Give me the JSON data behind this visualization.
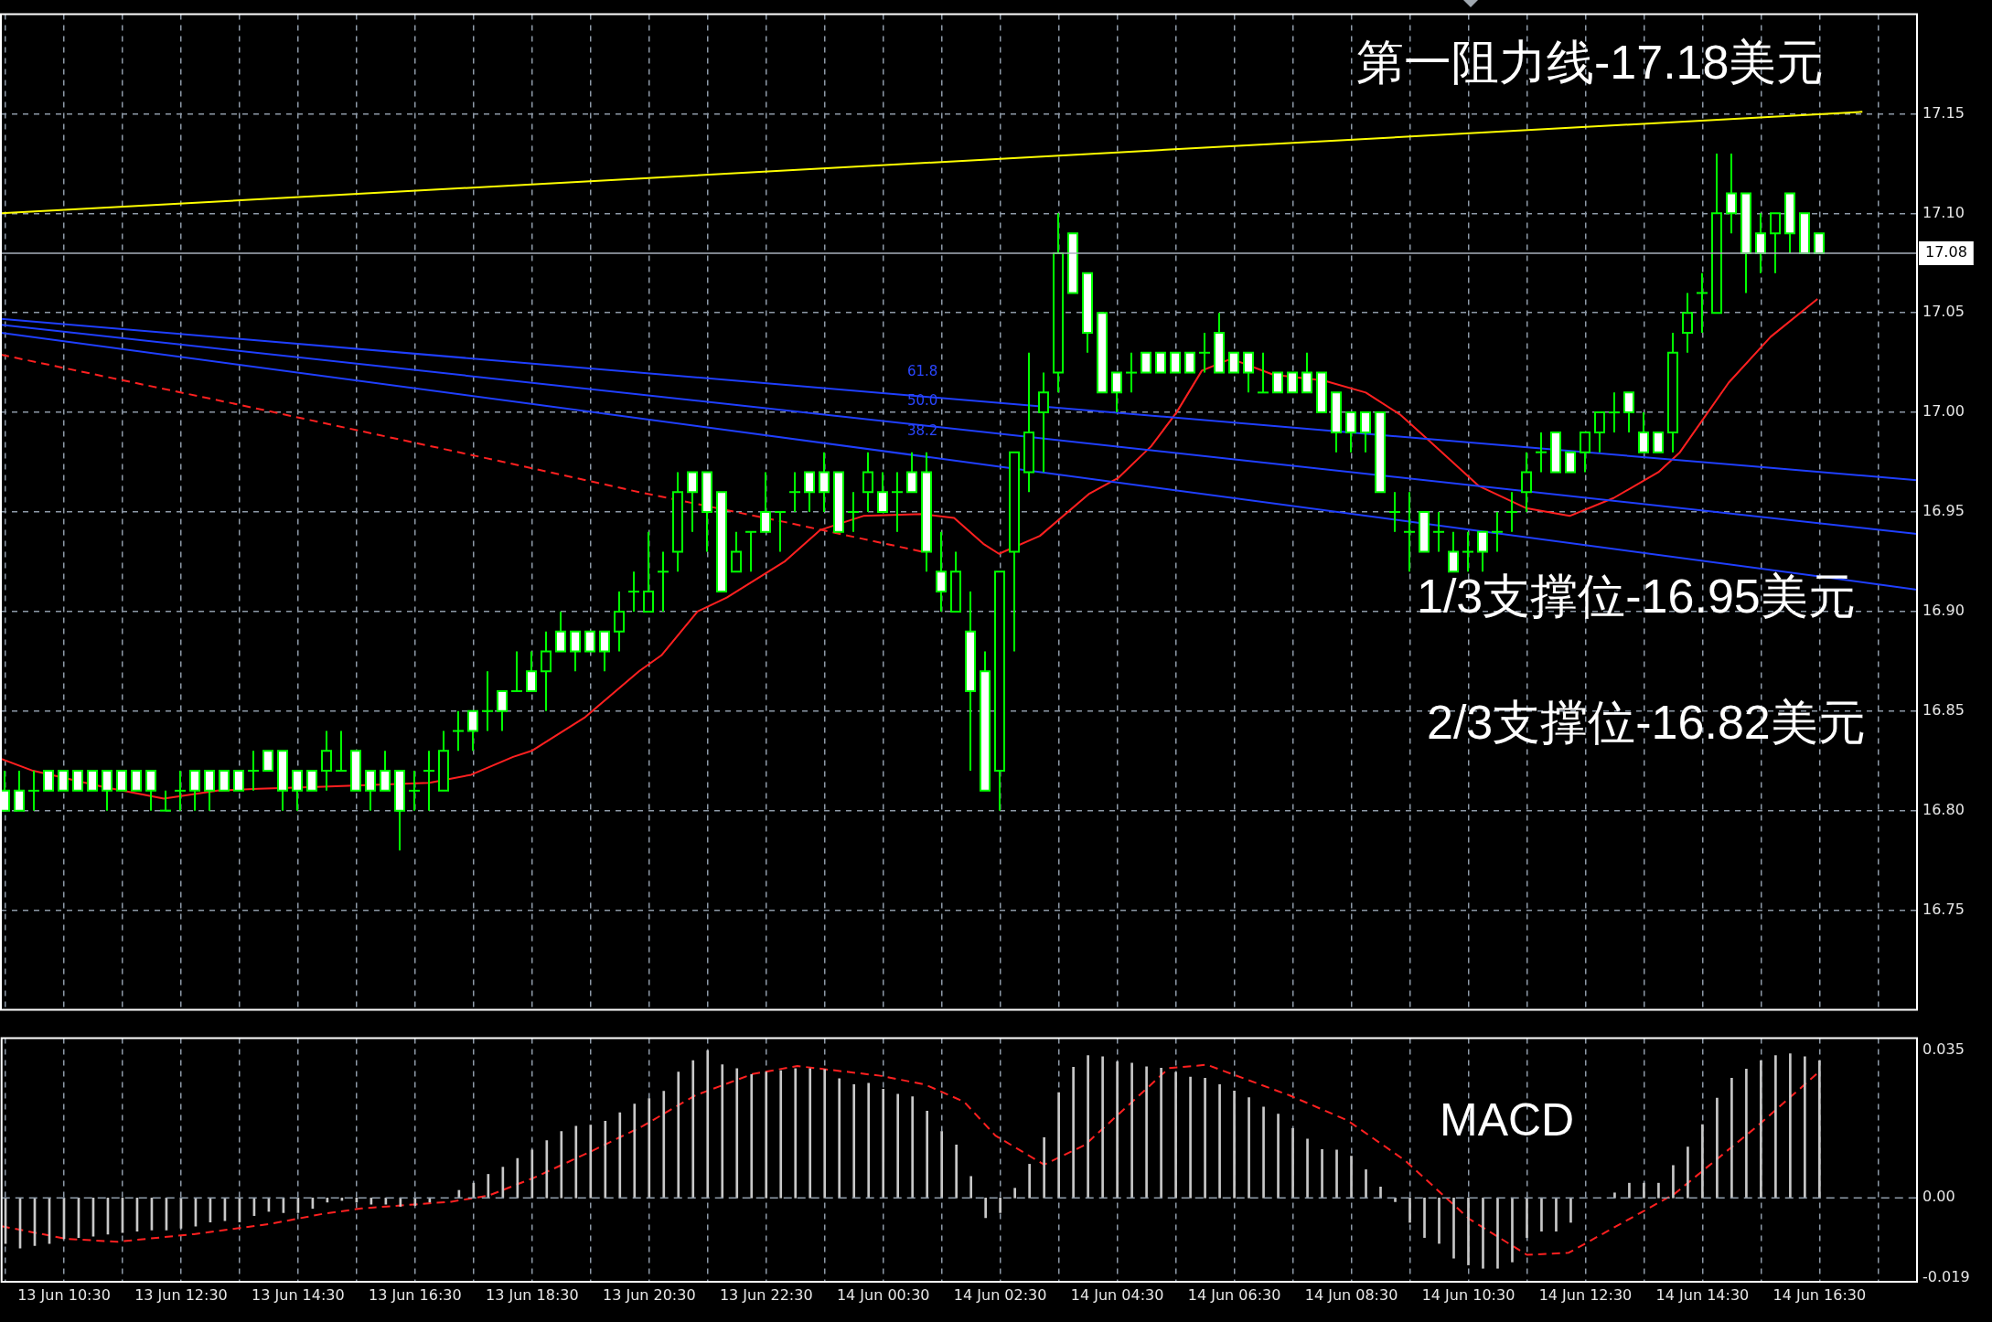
{
  "chart_data": [
    {
      "type": "candlestick",
      "x": [
        "--06-13T09:30",
        "--06-13T09:45",
        "--06-13T10:00",
        "--06-13T10:15",
        "--06-13T10:30",
        "--06-13T10:45",
        "--06-13T11:00",
        "--06-13T11:15",
        "--06-13T11:30",
        "--06-13T11:45",
        "--06-13T12:00",
        "--06-13T12:15",
        "--06-13T12:30",
        "--06-13T12:45",
        "--06-13T13:00",
        "--06-13T13:15",
        "--06-13T13:30",
        "--06-13T13:45",
        "--06-13T14:00",
        "--06-13T14:15",
        "--06-13T14:30",
        "--06-13T14:45",
        "--06-13T15:00",
        "--06-13T15:15",
        "--06-13T15:30",
        "--06-13T15:45",
        "--06-13T16:00",
        "--06-13T16:15",
        "--06-13T16:30",
        "--06-13T16:45",
        "--06-13T17:00",
        "--06-13T17:15",
        "--06-13T17:30",
        "--06-13T17:45",
        "--06-13T18:00",
        "--06-13T18:15",
        "--06-13T18:30",
        "--06-13T18:45",
        "--06-13T19:00",
        "--06-13T19:15",
        "--06-13T19:30",
        "--06-13T19:45",
        "--06-13T20:00",
        "--06-13T20:15",
        "--06-13T20:30",
        "--06-13T20:45",
        "--06-13T21:00",
        "--06-13T21:15",
        "--06-13T21:30",
        "--06-13T21:45",
        "--06-13T22:00",
        "--06-13T22:15",
        "--06-13T22:30",
        "--06-13T22:45",
        "--06-13T23:00",
        "--06-13T23:15",
        "--06-13T23:30",
        "--06-13T23:45",
        "--06-14T00:00",
        "--06-14T00:15",
        "--06-14T00:30",
        "--06-14T00:45",
        "--06-14T01:00",
        "--06-14T01:15",
        "--06-14T01:30",
        "--06-14T01:45",
        "--06-14T02:00",
        "--06-14T02:15",
        "--06-14T02:30",
        "--06-14T02:45",
        "--06-14T03:00",
        "--06-14T03:15",
        "--06-14T03:30",
        "--06-14T03:45",
        "--06-14T04:00",
        "--06-14T04:15",
        "--06-14T04:30",
        "--06-14T04:45",
        "--06-14T05:00",
        "--06-14T05:15",
        "--06-14T05:30",
        "--06-14T05:45",
        "--06-14T06:00",
        "--06-14T06:15",
        "--06-14T06:30",
        "--06-14T06:45",
        "--06-14T07:00",
        "--06-14T07:15",
        "--06-14T07:30",
        "--06-14T07:45",
        "--06-14T08:00",
        "--06-14T08:15",
        "--06-14T08:30",
        "--06-14T08:45",
        "--06-14T09:00",
        "--06-14T09:15",
        "--06-14T09:30",
        "--06-14T09:45",
        "--06-14T10:00",
        "--06-14T10:15",
        "--06-14T10:30",
        "--06-14T10:45",
        "--06-14T11:00",
        "--06-14T11:15",
        "--06-14T11:30",
        "--06-14T11:45",
        "--06-14T12:00",
        "--06-14T12:15",
        "--06-14T12:30",
        "--06-14T12:45",
        "--06-14T13:00",
        "--06-14T13:15",
        "--06-14T13:30",
        "--06-14T13:45",
        "--06-14T14:00",
        "--06-14T14:15",
        "--06-14T14:30",
        "--06-14T14:45",
        "--06-14T15:00",
        "--06-14T15:15",
        "--06-14T15:30",
        "--06-14T15:45",
        "--06-14T16:00",
        "--06-14T16:15",
        "--06-14T16:30"
      ],
      "ohlc": [
        [
          16.81,
          16.82,
          16.8,
          16.8
        ],
        [
          16.81,
          16.82,
          16.8,
          16.8
        ],
        [
          16.81,
          16.82,
          16.8,
          16.81
        ],
        [
          16.82,
          16.82,
          16.81,
          16.81
        ],
        [
          16.82,
          16.82,
          16.81,
          16.81
        ],
        [
          16.82,
          16.82,
          16.81,
          16.81
        ],
        [
          16.82,
          16.82,
          16.81,
          16.81
        ],
        [
          16.82,
          16.82,
          16.8,
          16.81
        ],
        [
          16.82,
          16.82,
          16.81,
          16.81
        ],
        [
          16.82,
          16.82,
          16.81,
          16.81
        ],
        [
          16.82,
          16.82,
          16.8,
          16.81
        ],
        [
          16.8,
          16.81,
          16.8,
          16.8
        ],
        [
          16.81,
          16.82,
          16.8,
          16.81
        ],
        [
          16.82,
          16.82,
          16.8,
          16.81
        ],
        [
          16.82,
          16.82,
          16.8,
          16.81
        ],
        [
          16.82,
          16.82,
          16.81,
          16.81
        ],
        [
          16.82,
          16.82,
          16.81,
          16.81
        ],
        [
          16.82,
          16.83,
          16.81,
          16.82
        ],
        [
          16.83,
          16.83,
          16.82,
          16.82
        ],
        [
          16.83,
          16.83,
          16.8,
          16.81
        ],
        [
          16.82,
          16.82,
          16.8,
          16.81
        ],
        [
          16.82,
          16.82,
          16.81,
          16.81
        ],
        [
          16.82,
          16.84,
          16.81,
          16.83
        ],
        [
          16.82,
          16.84,
          16.82,
          16.82
        ],
        [
          16.83,
          16.83,
          16.81,
          16.81
        ],
        [
          16.82,
          16.82,
          16.8,
          16.81
        ],
        [
          16.82,
          16.83,
          16.81,
          16.81
        ],
        [
          16.82,
          16.82,
          16.78,
          16.8
        ],
        [
          16.81,
          16.82,
          16.8,
          16.81
        ],
        [
          16.82,
          16.83,
          16.8,
          16.82
        ],
        [
          16.81,
          16.84,
          16.81,
          16.83
        ],
        [
          16.84,
          16.85,
          16.83,
          16.84
        ],
        [
          16.85,
          16.85,
          16.83,
          16.84
        ],
        [
          16.85,
          16.87,
          16.84,
          16.85
        ],
        [
          16.86,
          16.86,
          16.84,
          16.85
        ],
        [
          16.86,
          16.88,
          16.86,
          16.86
        ],
        [
          16.87,
          16.88,
          16.86,
          16.86
        ],
        [
          16.87,
          16.89,
          16.85,
          16.88
        ],
        [
          16.89,
          16.9,
          16.88,
          16.88
        ],
        [
          16.89,
          16.89,
          16.87,
          16.88
        ],
        [
          16.89,
          16.89,
          16.88,
          16.88
        ],
        [
          16.89,
          16.89,
          16.87,
          16.88
        ],
        [
          16.89,
          16.91,
          16.88,
          16.9
        ],
        [
          16.91,
          16.92,
          16.9,
          16.91
        ],
        [
          16.9,
          16.94,
          16.9,
          16.91
        ],
        [
          16.92,
          16.93,
          16.9,
          16.92
        ],
        [
          16.93,
          16.97,
          16.92,
          16.96
        ],
        [
          16.97,
          16.97,
          16.94,
          16.96
        ],
        [
          16.97,
          16.97,
          16.93,
          16.95
        ],
        [
          16.96,
          16.96,
          16.91,
          16.91
        ],
        [
          16.92,
          16.94,
          16.92,
          16.93
        ],
        [
          16.94,
          16.94,
          16.92,
          16.94
        ],
        [
          16.95,
          16.97,
          16.94,
          16.94
        ],
        [
          16.95,
          16.95,
          16.93,
          16.95
        ],
        [
          16.96,
          16.97,
          16.95,
          16.96
        ],
        [
          16.97,
          16.97,
          16.95,
          16.96
        ],
        [
          16.97,
          16.98,
          16.95,
          16.96
        ],
        [
          16.97,
          16.97,
          16.94,
          16.94
        ],
        [
          16.95,
          16.96,
          16.94,
          16.95
        ],
        [
          16.96,
          16.98,
          16.95,
          16.97
        ],
        [
          16.96,
          16.97,
          16.95,
          16.95
        ],
        [
          16.96,
          16.97,
          16.94,
          16.96
        ],
        [
          16.97,
          16.98,
          16.96,
          16.96
        ],
        [
          16.97,
          16.98,
          16.92,
          16.93
        ],
        [
          16.92,
          16.94,
          16.9,
          16.91
        ],
        [
          16.9,
          16.93,
          16.9,
          16.92
        ],
        [
          16.89,
          16.91,
          16.82,
          16.86
        ],
        [
          16.87,
          16.88,
          16.81,
          16.81
        ],
        [
          16.82,
          16.92,
          16.8,
          16.92
        ],
        [
          16.93,
          16.98,
          16.88,
          16.98
        ],
        [
          16.97,
          17.03,
          16.96,
          16.99
        ],
        [
          17.0,
          17.02,
          16.97,
          17.01
        ],
        [
          17.02,
          17.1,
          17.01,
          17.08
        ],
        [
          17.09,
          17.09,
          17.06,
          17.06
        ],
        [
          17.07,
          17.07,
          17.03,
          17.04
        ],
        [
          17.05,
          17.05,
          17.01,
          17.01
        ],
        [
          17.02,
          17.02,
          17.0,
          17.01
        ],
        [
          17.02,
          17.03,
          17.01,
          17.02
        ],
        [
          17.03,
          17.03,
          17.02,
          17.02
        ],
        [
          17.03,
          17.03,
          17.02,
          17.02
        ],
        [
          17.03,
          17.03,
          17.02,
          17.02
        ],
        [
          17.03,
          17.03,
          17.02,
          17.02
        ],
        [
          17.03,
          17.04,
          17.02,
          17.03
        ],
        [
          17.04,
          17.05,
          17.02,
          17.02
        ],
        [
          17.03,
          17.03,
          17.02,
          17.02
        ],
        [
          17.03,
          17.03,
          17.01,
          17.02
        ],
        [
          17.01,
          17.03,
          17.01,
          17.01
        ],
        [
          17.02,
          17.02,
          17.01,
          17.01
        ],
        [
          17.02,
          17.02,
          17.01,
          17.01
        ],
        [
          17.02,
          17.03,
          17.01,
          17.01
        ],
        [
          17.02,
          17.02,
          17.0,
          17.0
        ],
        [
          17.01,
          17.01,
          16.98,
          16.99
        ],
        [
          17.0,
          17.0,
          16.98,
          16.99
        ],
        [
          17.0,
          17.0,
          16.98,
          16.99
        ],
        [
          17.0,
          17.0,
          16.96,
          16.96
        ],
        [
          16.95,
          16.96,
          16.94,
          16.95
        ],
        [
          16.94,
          16.96,
          16.92,
          16.94
        ],
        [
          16.95,
          16.95,
          16.93,
          16.93
        ],
        [
          16.94,
          16.95,
          16.93,
          16.94
        ],
        [
          16.93,
          16.94,
          16.92,
          16.92
        ],
        [
          16.93,
          16.94,
          16.92,
          16.93
        ],
        [
          16.94,
          16.94,
          16.92,
          16.93
        ],
        [
          16.94,
          16.95,
          16.93,
          16.94
        ],
        [
          16.95,
          16.96,
          16.94,
          16.95
        ],
        [
          16.96,
          16.98,
          16.95,
          16.97
        ],
        [
          16.98,
          16.99,
          16.97,
          16.98
        ],
        [
          16.99,
          16.99,
          16.97,
          16.97
        ],
        [
          16.98,
          16.98,
          16.97,
          16.97
        ],
        [
          16.98,
          16.99,
          16.97,
          16.99
        ],
        [
          16.99,
          17.0,
          16.98,
          17.0
        ],
        [
          17.0,
          17.01,
          16.99,
          17.0
        ],
        [
          17.01,
          17.01,
          16.99,
          17.0
        ],
        [
          16.99,
          17.0,
          16.98,
          16.98
        ],
        [
          16.99,
          16.99,
          16.98,
          16.98
        ],
        [
          16.99,
          17.04,
          16.98,
          17.03
        ],
        [
          17.04,
          17.06,
          17.03,
          17.05
        ],
        [
          17.06,
          17.07,
          17.04,
          17.06
        ],
        [
          17.05,
          17.13,
          17.05,
          17.1
        ],
        [
          17.11,
          17.13,
          17.09,
          17.1
        ],
        [
          17.11,
          17.11,
          17.06,
          17.08
        ],
        [
          17.09,
          17.1,
          17.07,
          17.08
        ],
        [
          17.09,
          17.1,
          17.07,
          17.1
        ],
        [
          17.11,
          17.11,
          17.08,
          17.09
        ],
        [
          17.1,
          17.1,
          17.08,
          17.08
        ],
        [
          17.09,
          17.09,
          17.08,
          17.08
        ]
      ],
      "series": [
        {
          "type": "line",
          "color": "#ffff00",
          "x": [
            "--06-13T09:26",
            "--06-14T17:14"
          ],
          "values": [
            17.1,
            17.151
          ]
        },
        {
          "type": "line",
          "color": "#1f3fff",
          "x": [
            "--06-13T09:26",
            "--06-14T18:10"
          ],
          "values": [
            17.047,
            16.966
          ]
        },
        {
          "type": "line",
          "color": "#1f3fff",
          "x": [
            "--06-13T09:26",
            "--06-14T18:10"
          ],
          "values": [
            17.044,
            16.939
          ]
        },
        {
          "type": "line",
          "color": "#1f3fff",
          "x": [
            "--06-13T09:26",
            "--06-14T18:10"
          ],
          "values": [
            17.04,
            16.911
          ]
        },
        {
          "type": "line",
          "color": "#ff2020",
          "line_style": "dashed",
          "x": [
            "--06-13T09:26",
            "--06-13T13:29",
            "--06-13T17:53",
            "--06-13T20:20",
            "--06-13T22:49",
            "--06-14T01:11"
          ],
          "values": [
            17.029,
            17.004,
            16.976,
            16.96,
            16.945,
            16.93
          ]
        },
        {
          "type": "line",
          "color": "#ff2020",
          "x": [
            "--06-13T09:26",
            "--06-13T09:59",
            "--06-13T11:10",
            "--06-13T12:13",
            "--06-13T13:08",
            "--06-13T13:50",
            "--06-13T14:56",
            "--06-13T16:45",
            "--06-13T17:28",
            "--06-13T18:11",
            "--06-13T18:30",
            "--06-13T19:25",
            "--06-13T20:20",
            "--06-13T20:43",
            "--06-13T21:20",
            "--06-13T21:50",
            "--06-13T22:49",
            "--06-13T23:26",
            "--06-14T00:10",
            "--06-14T01:10",
            "--06-14T01:43",
            "--06-14T02:13",
            "--06-14T02:29",
            "--06-14T03:11",
            "--06-14T04:01",
            "--06-14T04:31",
            "--06-14T05:05",
            "--06-14T05:31",
            "--06-14T05:57",
            "--06-14T06:27",
            "--06-14T07:10",
            "--06-14T08:02",
            "--06-14T08:45",
            "--06-14T09:20",
            "--06-14T09:45",
            "--06-14T10:41",
            "--06-14T11:29",
            "--06-14T12:14",
            "--06-14T12:59",
            "--06-14T13:45",
            "--06-14T14:07",
            "--06-14T14:57",
            "--06-14T15:40",
            "--06-14T16:28"
          ],
          "values": [
            16.826,
            16.82,
            16.812,
            16.806,
            16.81,
            16.811,
            16.812,
            16.814,
            16.818,
            16.827,
            16.83,
            16.847,
            16.87,
            16.878,
            16.9,
            16.907,
            16.925,
            16.941,
            16.948,
            16.949,
            16.947,
            16.934,
            16.929,
            16.938,
            16.959,
            16.967,
            16.983,
            17.0,
            17.021,
            17.027,
            17.019,
            17.016,
            17.01,
            16.999,
            16.988,
            16.963,
            16.952,
            16.948,
            16.957,
            16.97,
            16.98,
            17.015,
            17.038,
            17.057
          ]
        }
      ],
      "xlim": [
        "--06-13T09:26",
        "--06-14T18:10"
      ],
      "xticks": [
        {
          "value": "--06-13T09:30",
          "label": null
        },
        {
          "value": "--06-13T10:30",
          "label": null
        },
        {
          "value": "--06-13T11:30",
          "label": null
        },
        {
          "value": "--06-13T12:30",
          "label": null
        },
        {
          "value": "--06-13T13:30",
          "label": null
        },
        {
          "value": "--06-13T14:30",
          "label": null
        },
        {
          "value": "--06-13T15:30",
          "label": null
        },
        {
          "value": "--06-13T16:30",
          "label": null
        },
        {
          "value": "--06-13T17:30",
          "label": null
        },
        {
          "value": "--06-13T18:30",
          "label": null
        },
        {
          "value": "--06-13T19:30",
          "label": null
        },
        {
          "value": "--06-13T20:30",
          "label": null
        },
        {
          "value": "--06-13T21:30",
          "label": null
        },
        {
          "value": "--06-13T22:30",
          "label": null
        },
        {
          "value": "--06-13T23:30",
          "label": null
        },
        {
          "value": "--06-14T00:30",
          "label": null
        },
        {
          "value": "--06-14T01:30",
          "label": null
        },
        {
          "value": "--06-14T02:30",
          "label": null
        },
        {
          "value": "--06-14T03:30",
          "label": null
        },
        {
          "value": "--06-14T04:30",
          "label": null
        },
        {
          "value": "--06-14T05:30",
          "label": null
        },
        {
          "value": "--06-14T06:30",
          "label": null
        },
        {
          "value": "--06-14T07:30",
          "label": null
        },
        {
          "value": "--06-14T08:30",
          "label": null
        },
        {
          "value": "--06-14T09:30",
          "label": null
        },
        {
          "value": "--06-14T10:30",
          "label": null
        },
        {
          "value": "--06-14T11:30",
          "label": null
        },
        {
          "value": "--06-14T12:30",
          "label": null
        },
        {
          "value": "--06-14T13:30",
          "label": null
        },
        {
          "value": "--06-14T14:30",
          "label": null
        },
        {
          "value": "--06-14T15:30",
          "label": null
        },
        {
          "value": "--06-14T16:30",
          "label": null
        },
        {
          "value": "--06-14T17:30",
          "label": null
        }
      ],
      "ylim": [
        16.7,
        17.2
      ],
      "yticks": [
        16.75,
        {
          "value": 16.8,
          "label": "16.80"
        },
        16.85,
        {
          "value": 16.9,
          "label": "16.90"
        },
        16.95,
        {
          "value": 17,
          "label": "17.00"
        },
        17.05,
        {
          "value": 17.1,
          "label": "17.10"
        },
        17.15
      ],
      "grid": true,
      "tick_labels": "y",
      "ref_lines": [
        {
          "axis": "y",
          "value": 17.08,
          "label": "17.08",
          "color": "#a8b0bc"
        }
      ],
      "annotations": [
        "第一阻力线-17.18美元",
        "1/3支撑位-16.95美元",
        "2/3支撑位-16.82美元",
        "61.8",
        "50.0",
        "38.2"
      ]
    },
    {
      "type": "bar",
      "x": [
        "--06-13T09:30",
        "--06-13T09:45",
        "--06-13T10:00",
        "--06-13T10:15",
        "--06-13T10:30",
        "--06-13T10:45",
        "--06-13T11:00",
        "--06-13T11:15",
        "--06-13T11:30",
        "--06-13T11:45",
        "--06-13T12:00",
        "--06-13T12:15",
        "--06-13T12:30",
        "--06-13T12:45",
        "--06-13T13:00",
        "--06-13T13:15",
        "--06-13T13:30",
        "--06-13T13:45",
        "--06-13T14:00",
        "--06-13T14:15",
        "--06-13T14:30",
        "--06-13T14:45",
        "--06-13T15:00",
        "--06-13T15:15",
        "--06-13T15:30",
        "--06-13T15:45",
        "--06-13T16:00",
        "--06-13T16:15",
        "--06-13T16:30",
        "--06-13T16:45",
        "--06-13T17:00",
        "--06-13T17:15",
        "--06-13T17:30",
        "--06-13T17:45",
        "--06-13T18:00",
        "--06-13T18:15",
        "--06-13T18:30",
        "--06-13T18:45",
        "--06-13T19:00",
        "--06-13T19:15",
        "--06-13T19:30",
        "--06-13T19:45",
        "--06-13T20:00",
        "--06-13T20:15",
        "--06-13T20:30",
        "--06-13T20:45",
        "--06-13T21:00",
        "--06-13T21:15",
        "--06-13T21:30",
        "--06-13T21:45",
        "--06-13T22:00",
        "--06-13T22:15",
        "--06-13T22:30",
        "--06-13T22:45",
        "--06-13T23:00",
        "--06-13T23:15",
        "--06-13T23:30",
        "--06-13T23:45",
        "--06-14T00:00",
        "--06-14T00:15",
        "--06-14T00:30",
        "--06-14T00:45",
        "--06-14T01:00",
        "--06-14T01:15",
        "--06-14T01:30",
        "--06-14T01:45",
        "--06-14T02:00",
        "--06-14T02:15",
        "--06-14T02:30",
        "--06-14T02:45",
        "--06-14T03:00",
        "--06-14T03:15",
        "--06-14T03:30",
        "--06-14T03:45",
        "--06-14T04:00",
        "--06-14T04:15",
        "--06-14T04:30",
        "--06-14T04:45",
        "--06-14T05:00",
        "--06-14T05:15",
        "--06-14T05:30",
        "--06-14T05:45",
        "--06-14T06:00",
        "--06-14T06:15",
        "--06-14T06:30",
        "--06-14T06:45",
        "--06-14T07:00",
        "--06-14T07:15",
        "--06-14T07:30",
        "--06-14T07:45",
        "--06-14T08:00",
        "--06-14T08:15",
        "--06-14T08:30",
        "--06-14T08:45",
        "--06-14T09:00",
        "--06-14T09:15",
        "--06-14T09:30",
        "--06-14T09:45",
        "--06-14T10:00",
        "--06-14T10:15",
        "--06-14T10:30",
        "--06-14T10:45",
        "--06-14T11:00",
        "--06-14T11:15",
        "--06-14T11:30",
        "--06-14T11:45",
        "--06-14T12:00",
        "--06-14T12:15",
        "--06-14T12:30",
        "--06-14T12:45",
        "--06-14T13:00",
        "--06-14T13:15",
        "--06-14T13:30",
        "--06-14T13:45",
        "--06-14T14:00",
        "--06-14T14:15",
        "--06-14T14:30",
        "--06-14T14:45",
        "--06-14T15:00",
        "--06-14T15:15",
        "--06-14T15:30",
        "--06-14T15:45",
        "--06-14T16:00",
        "--06-14T16:15",
        "--06-14T16:30"
      ],
      "series": [
        {
          "color": "#c8c8c8",
          "values": [
            -0.0108,
            -0.0119,
            -0.0113,
            -0.0108,
            -0.0097,
            -0.0094,
            -0.0091,
            -0.0086,
            -0.0082,
            -0.0079,
            -0.0076,
            -0.0076,
            -0.0072,
            -0.0067,
            -0.0057,
            -0.0054,
            -0.0057,
            -0.0042,
            -0.0032,
            -0.0035,
            -0.0035,
            -0.0025,
            -0.001,
            -0.0006,
            -0.001,
            -0.0015,
            -0.0015,
            -0.002,
            -0.0018,
            -0.001,
            null,
            0.0018,
            0.0035,
            0.0056,
            0.0073,
            0.0094,
            0.0114,
            0.0136,
            0.0158,
            0.017,
            0.0173,
            0.0182,
            0.0202,
            0.0223,
            0.0236,
            0.0253,
            0.0299,
            0.0326,
            0.035,
            0.0316,
            0.0307,
            0.0293,
            0.0299,
            0.0302,
            0.0307,
            0.0307,
            0.0305,
            0.0283,
            0.0269,
            0.0272,
            0.0258,
            0.0246,
            0.024,
            0.0206,
            0.0158,
            0.0126,
            0.0051,
            -0.0047,
            -0.0035,
            0.0023,
            0.008,
            0.0143,
            0.025,
            0.031,
            0.0338,
            0.0335,
            0.0323,
            0.032,
            0.0311,
            0.0308,
            0.0298,
            0.0287,
            0.0284,
            0.0269,
            0.0254,
            0.0238,
            0.0216,
            0.0199,
            0.0165,
            0.014,
            0.0115,
            0.0114,
            0.0099,
            0.0067,
            0.0026,
            -0.0009,
            -0.0058,
            -0.0094,
            -0.0108,
            -0.0143,
            -0.0159,
            -0.0167,
            -0.0167,
            -0.0152,
            -0.0094,
            -0.0079,
            -0.0079,
            -0.0058,
            null,
            0,
            0.0012,
            0.0035,
            0.0035,
            0.0035,
            0.0077,
            0.0121,
            0.0174,
            0.0237,
            0.0284,
            0.0306,
            0.0326,
            0.0338,
            0.0342,
            0.0335,
            0.0326
          ]
        },
        {
          "type": "line",
          "color": "#ff2020",
          "line_style": "dashed",
          "x": [
            "--06-13T09:26",
            "--06-13T10:32",
            "--06-13T11:25",
            "--06-13T12:43",
            "--06-13T14:03",
            "--06-13T14:55",
            "--06-13T15:35",
            "--06-13T17:07",
            "--06-13T17:46",
            "--06-13T18:32",
            "--06-13T19:31",
            "--06-13T20:23",
            "--06-13T21:17",
            "--06-13T22:16",
            "--06-13T23:02",
            "--06-14T00:27",
            "--06-14T01:13",
            "--06-14T01:53",
            "--06-14T02:25",
            "--06-14T03:15",
            "--06-14T03:57",
            "--06-14T05:23",
            "--06-14T06:02",
            "--06-14T07:27",
            "--06-14T08:26",
            "--06-14T09:25",
            "--06-14T10:31",
            "--06-14T11:30",
            "--06-14T12:13",
            "--06-14T13:15",
            "--06-14T14:01",
            "--06-14T15:26",
            "--06-14T16:29"
          ],
          "values": [
            -0.0067,
            -0.0097,
            -0.0104,
            -0.0086,
            -0.0061,
            -0.0038,
            -0.0025,
            -0.0009,
            0.0006,
            0.0048,
            0.0111,
            0.017,
            0.0243,
            0.0294,
            0.0313,
            0.029,
            0.0269,
            0.0228,
            0.0148,
            0.0079,
            0.0126,
            0.0308,
            0.0316,
            0.0243,
            0.0184,
            0.0089,
            -0.005,
            -0.0135,
            -0.013,
            -0.005,
            0.0009,
            0.017,
            0.0298
          ]
        }
      ],
      "xlim": [
        "--06-13T09:26",
        "--06-14T18:10"
      ],
      "xticks": [
        {
          "value": "--06-13T09:30",
          "label": null
        },
        {
          "value": "--06-13T10:30",
          "label": "13 Jun 10:30"
        },
        {
          "value": "--06-13T11:30",
          "label": null
        },
        {
          "value": "--06-13T12:30",
          "label": "13 Jun 12:30"
        },
        {
          "value": "--06-13T13:30",
          "label": null
        },
        {
          "value": "--06-13T14:30",
          "label": "13 Jun 14:30"
        },
        {
          "value": "--06-13T15:30",
          "label": null
        },
        {
          "value": "--06-13T16:30",
          "label": "13 Jun 16:30"
        },
        {
          "value": "--06-13T17:30",
          "label": null
        },
        {
          "value": "--06-13T18:30",
          "label": "13 Jun 18:30"
        },
        {
          "value": "--06-13T19:30",
          "label": null
        },
        {
          "value": "--06-13T20:30",
          "label": "13 Jun 20:30"
        },
        {
          "value": "--06-13T21:30",
          "label": null
        },
        {
          "value": "--06-13T22:30",
          "label": "13 Jun 22:30"
        },
        {
          "value": "--06-13T23:30",
          "label": null
        },
        {
          "value": "--06-14T00:30",
          "label": "14 Jun 00:30"
        },
        {
          "value": "--06-14T01:30",
          "label": null
        },
        {
          "value": "--06-14T02:30",
          "label": "14 Jun 02:30"
        },
        {
          "value": "--06-14T03:30",
          "label": null
        },
        {
          "value": "--06-14T04:30",
          "label": "14 Jun 04:30"
        },
        {
          "value": "--06-14T05:30",
          "label": null
        },
        {
          "value": "--06-14T06:30",
          "label": "14 Jun 06:30"
        },
        {
          "value": "--06-14T07:30",
          "label": null
        },
        {
          "value": "--06-14T08:30",
          "label": "14 Jun 08:30"
        },
        {
          "value": "--06-14T09:30",
          "label": null
        },
        {
          "value": "--06-14T10:30",
          "label": "14 Jun 10:30"
        },
        {
          "value": "--06-14T11:30",
          "label": null
        },
        {
          "value": "--06-14T12:30",
          "label": "14 Jun 12:30"
        },
        {
          "value": "--06-14T13:30",
          "label": null
        },
        {
          "value": "--06-14T14:30",
          "label": "14 Jun 14:30"
        },
        {
          "value": "--06-14T15:30",
          "label": null
        },
        {
          "value": "--06-14T16:30",
          "label": "14 Jun 16:30"
        },
        {
          "value": "--06-14T17:30",
          "label": null
        }
      ],
      "ylim": [
        -0.0199,
        0.0379
      ],
      "yticks": [
        -0.019,
        {
          "value": 0,
          "label": "0.00"
        },
        0.035
      ],
      "grid": "x",
      "ref_lines": [
        {
          "axis": "y",
          "value": 0,
          "color": "#8e9aa8",
          "line_style": "dashed"
        }
      ],
      "annotations": [
        "MACD"
      ]
    }
  ]
}
